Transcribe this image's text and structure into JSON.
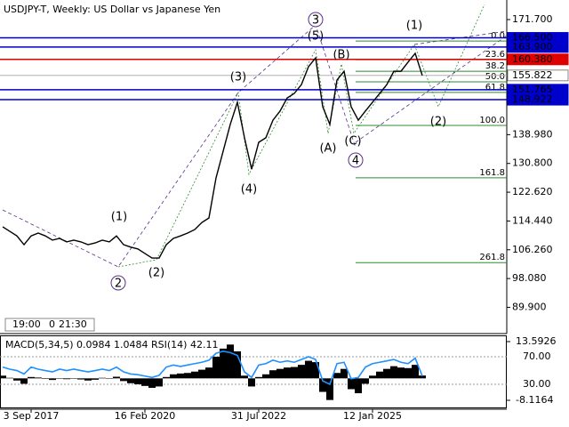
{
  "chart_data": {
    "type": "line",
    "title": "USDJPY-T, Weekly:  US Dollar vs Japanese Yen",
    "categories": [
      null,
      null,
      null,
      null,
      "3 Sep 2017",
      null,
      null,
      null,
      null,
      null,
      null,
      null,
      null,
      null,
      null,
      null,
      null,
      null,
      null,
      null,
      "16 Feb 2020",
      null,
      null,
      null,
      null,
      null,
      null,
      null,
      null,
      null,
      null,
      null,
      null,
      null,
      null,
      null,
      "31 Jul 2022",
      null,
      null,
      null,
      null,
      null,
      null,
      null,
      null,
      null,
      null,
      null,
      null,
      null,
      null,
      null,
      "12 Jan 2025",
      null,
      null,
      null,
      null,
      null,
      null,
      null
    ],
    "series": [
      {
        "name": "USDJPY-T",
        "color": "#000000",
        "values": [
          112.8,
          111.5,
          110.2,
          107.7,
          110.2,
          111.0,
          110.2,
          109.0,
          109.5,
          108.5,
          109.0,
          108.5,
          107.7,
          108.2,
          109.0,
          108.5,
          110.2,
          107.7,
          107.0,
          106.5,
          105.2,
          103.9,
          103.9,
          107.7,
          109.5,
          110.2,
          111.0,
          112.0,
          114.0,
          115.3,
          126.7,
          134.3,
          141.9,
          148.2,
          138.1,
          129.2,
          136.8,
          138.1,
          143.1,
          145.7,
          149.4,
          150.7,
          153.2,
          158.3,
          160.8,
          146.9,
          141.9,
          154.5,
          157.0,
          146.9,
          143.1,
          145.7,
          148.2,
          150.7,
          153.2,
          157.0,
          157.0,
          159.6,
          162.1,
          155.8
        ]
      }
    ],
    "ylim": [
      82.43,
      177.26
    ],
    "yticks": [
      {
        "value": 171.7,
        "label": "171.700"
      },
      {
        "value": 138.98,
        "label": "138.980"
      },
      {
        "value": 130.8,
        "label": "130.800"
      },
      {
        "value": 122.62,
        "label": "122.620"
      },
      {
        "value": 114.44,
        "label": "114.440"
      },
      {
        "value": 106.26,
        "label": "106.260"
      },
      {
        "value": 98.08,
        "label": "98.080"
      },
      {
        "value": 89.9,
        "label": "89.900"
      }
    ],
    "levels": [
      {
        "value": 166.5,
        "label": "166.500",
        "color": "#0000cc"
      },
      {
        "value": 163.9,
        "label": "163.900",
        "color": "#0000cc"
      },
      {
        "value": 160.38,
        "label": "160.380",
        "color": "#e00000"
      },
      {
        "value": 155.822,
        "label": "155.822",
        "color": "#b0b0b0"
      },
      {
        "value": 151.765,
        "label": "151.765",
        "color": "#0000cc"
      },
      {
        "value": 148.922,
        "label": "148.922",
        "color": "#0000cc"
      }
    ],
    "fib_levels": [
      {
        "label": "0.0",
        "price": 165.6
      },
      {
        "label": "23.6",
        "price": 160.3
      },
      {
        "label": "38.2",
        "price": 157.0
      },
      {
        "label": "50.0",
        "price": 154.0
      },
      {
        "label": "61.8",
        "price": 151.0
      },
      {
        "label": "100.0",
        "price": 141.6
      },
      {
        "label": "161.8",
        "price": 126.7
      },
      {
        "label": "261.8",
        "price": 102.6
      }
    ],
    "fib_color": "#2e8b2e",
    "waves": [
      {
        "label": "(1)",
        "color": "#2e8b2e"
      },
      {
        "label": "2",
        "color": "#5a2d8c"
      },
      {
        "label": "(2)",
        "color": "#2e8b2e"
      },
      {
        "label": "(3)",
        "color": "#2e8b2e"
      },
      {
        "label": "(4)",
        "color": "#2e8b2e"
      },
      {
        "label": "3",
        "color": "#5a2d8c"
      },
      {
        "label": "(5)",
        "color": "#2e8b2e"
      },
      {
        "label": "(B)",
        "color": "#2e8b2e"
      },
      {
        "label": "(A)",
        "color": "#2e8b2e"
      },
      {
        "label": "(C)",
        "color": "#2e8b2e"
      },
      {
        "label": "4",
        "color": "#5a2d8c"
      },
      {
        "label": "(1)",
        "color": "#2e8b2e"
      },
      {
        "label": "(2)",
        "color": "#2e8b2e"
      }
    ],
    "time_labels": [
      "19:00",
      "0",
      "21:30"
    ],
    "indicator": {
      "title": "MACD(5,34,5) 0.0984 1.0484 RSI(14) 42.11",
      "macd_color": "#000000",
      "rsi_color": "#1e90ff",
      "macd": [
        1.0,
        0.2,
        -0.8,
        -2.0,
        0.5,
        0.3,
        -0.2,
        -0.6,
        0.1,
        -0.3,
        0.0,
        -0.4,
        -0.8,
        -0.5,
        0.2,
        -0.1,
        0.6,
        -1.0,
        -1.8,
        -2.2,
        -2.8,
        -3.5,
        -3.0,
        0.5,
        1.5,
        1.8,
        2.0,
        2.5,
        3.2,
        4.0,
        8.0,
        11.0,
        12.5,
        10.0,
        1.0,
        -3.0,
        0.5,
        1.5,
        3.0,
        3.5,
        4.0,
        4.2,
        5.0,
        6.5,
        6.0,
        -5.0,
        -8.0,
        2.0,
        3.5,
        -4.0,
        -5.5,
        -2.0,
        1.0,
        2.5,
        3.5,
        4.5,
        4.0,
        3.8,
        5.0,
        1.05
      ],
      "rsi": [
        55,
        52,
        50,
        45,
        55,
        52,
        50,
        48,
        52,
        50,
        52,
        50,
        48,
        50,
        52,
        50,
        55,
        48,
        45,
        44,
        42,
        40,
        43,
        55,
        58,
        56,
        58,
        60,
        62,
        65,
        75,
        78,
        76,
        72,
        48,
        40,
        58,
        60,
        65,
        62,
        64,
        62,
        66,
        70,
        66,
        35,
        30,
        60,
        62,
        38,
        40,
        55,
        60,
        62,
        64,
        66,
        62,
        60,
        68,
        42
      ],
      "macd_lim": [
        -10.75,
        15.57
      ],
      "macd_ticks": [
        13.5926,
        -8.1164
      ],
      "rsi_lim": [
        -3.5,
        99.7
      ],
      "rsi_ticks": [
        {
          "value": 70,
          "label": "70.00"
        },
        {
          "value": 30,
          "label": "30.00"
        }
      ]
    }
  }
}
